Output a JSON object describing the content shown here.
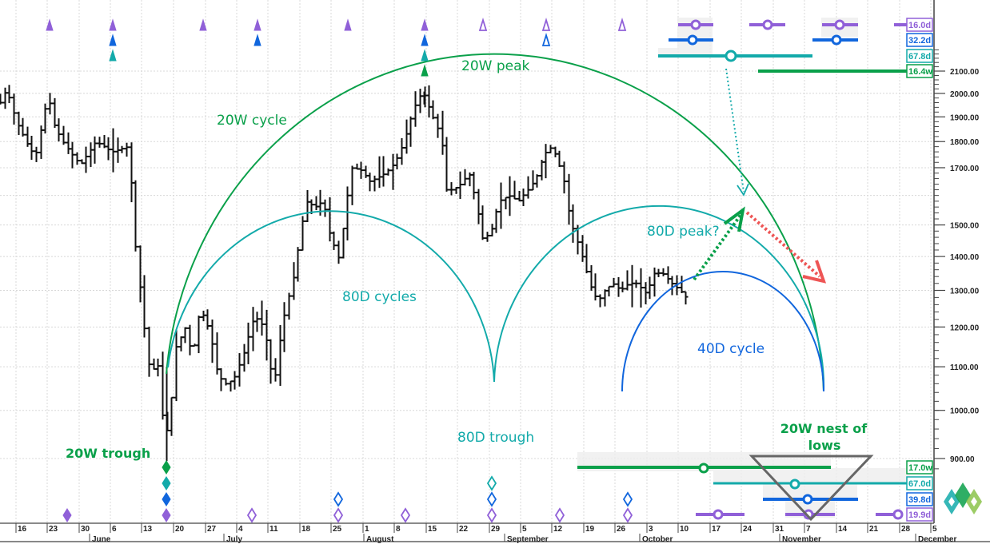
{
  "chart_data": {
    "type": "bar",
    "subtype": "ohlc-daily-price-with-cycle-analysis",
    "title": "",
    "xlabel": "",
    "ylabel": "",
    "y_scale": "log",
    "ylim": [
      870,
      2200
    ],
    "y_ticks": [
      "2100.00",
      "2000.00",
      "1900.00",
      "1800.00",
      "1700.00",
      "1500.00",
      "1400.00",
      "1300.00",
      "1200.00",
      "1100.00",
      "1000.00",
      "900.00"
    ],
    "x_week_ticks": [
      "16",
      "23",
      "30",
      "6",
      "13",
      "20",
      "27",
      "4",
      "11",
      "18",
      "25",
      "1",
      "8",
      "15",
      "22",
      "29",
      "5",
      "12",
      "19",
      "26",
      "3",
      "10",
      "17",
      "24",
      "31",
      "7",
      "14",
      "21",
      "28",
      "5"
    ],
    "x_months": [
      "June",
      "July",
      "August",
      "September",
      "October",
      "November",
      "December"
    ],
    "price_path_approx": [
      {
        "date": "May 16",
        "close": 2000
      },
      {
        "date": "May 23",
        "close": 1900
      },
      {
        "date": "May 30",
        "close": 1850
      },
      {
        "date": "Jun 6",
        "close": 1800
      },
      {
        "date": "Jun 13",
        "close": 1300
      },
      {
        "date": "Jun 18",
        "close": 900
      },
      {
        "date": "Jun 20",
        "close": 1150
      },
      {
        "date": "Jun 27",
        "close": 1200
      },
      {
        "date": "Jul 4",
        "close": 1070
      },
      {
        "date": "Jul 11",
        "close": 1150
      },
      {
        "date": "Jul 18",
        "close": 1580
      },
      {
        "date": "Jul 25",
        "close": 1600
      },
      {
        "date": "Aug 1",
        "close": 1700
      },
      {
        "date": "Aug 8",
        "close": 1650
      },
      {
        "date": "Aug 15",
        "close": 2000
      },
      {
        "date": "Aug 22",
        "close": 1640
      },
      {
        "date": "Aug 29",
        "close": 1470
      },
      {
        "date": "Sep 5",
        "close": 1600
      },
      {
        "date": "Sep 12",
        "close": 1780
      },
      {
        "date": "Sep 19",
        "close": 1300
      },
      {
        "date": "Sep 26",
        "close": 1310
      },
      {
        "date": "Oct 3",
        "close": 1340
      },
      {
        "date": "Oct 10",
        "close": 1290
      }
    ],
    "cycles": [
      {
        "name": "20W cycle",
        "color": "#0aa04a",
        "trough": "Jun 18",
        "next_trough": "Nov 7"
      },
      {
        "name": "80D cycles",
        "color": "#13aaaa",
        "troughs": [
          "Jun 18",
          "Aug 29",
          "Nov 7"
        ]
      },
      {
        "name": "40D cycle",
        "color": "#1166dd",
        "troughs": [
          "Sep 26",
          "Nov 7"
        ]
      }
    ],
    "annotations": [
      "20W peak",
      "20W cycle",
      "80D cycles",
      "80D trough",
      "80D peak?",
      "40D cycle",
      "20W trough",
      "20W nest of lows"
    ],
    "legend_position": "right axis badges"
  },
  "annotations": {
    "peak_20w": "20W peak",
    "cycle_20w": "20W cycle",
    "cycles_80d": "80D cycles",
    "trough_80d": "80D trough",
    "peak_80d": "80D peak?",
    "cycle_40d": "40D cycle",
    "trough_20w": "20W trough",
    "nest_line1": "20W nest of",
    "nest_line2": "lows"
  },
  "badges_top": [
    {
      "label": "16.0d",
      "color": "#9060d8"
    },
    {
      "label": "32.2d",
      "color": "#1166dd"
    },
    {
      "label": "67.8d",
      "color": "#13aaaa"
    },
    {
      "label": "16.4w",
      "color": "#0aa04a"
    }
  ],
  "badges_bottom": [
    {
      "label": "17.0w",
      "color": "#0aa04a"
    },
    {
      "label": "67.0d",
      "color": "#13aaaa"
    },
    {
      "label": "39.8d",
      "color": "#1166dd"
    },
    {
      "label": "19.9d",
      "color": "#9060d8"
    }
  ],
  "price_axis": {
    "labels": [
      "2100.00",
      "2000.00",
      "1900.00",
      "1800.00",
      "1700.00",
      "1500.00",
      "1400.00",
      "1300.00",
      "1200.00",
      "1100.00",
      "1000.00",
      "900.00"
    ]
  },
  "date_axis": {
    "weeks": [
      "16",
      "23",
      "30",
      "6",
      "13",
      "20",
      "27",
      "4",
      "11",
      "18",
      "25",
      "1",
      "8",
      "15",
      "22",
      "29",
      "5",
      "12",
      "19",
      "26",
      "3",
      "10",
      "17",
      "24",
      "31",
      "7",
      "14",
      "21",
      "28",
      "5"
    ],
    "months": [
      "June",
      "July",
      "August",
      "September",
      "October",
      "November",
      "December"
    ]
  },
  "colors": {
    "green": "#0aa04a",
    "teal": "#13aaaa",
    "blue": "#1166dd",
    "purple": "#9060d8",
    "red": "#ee5555",
    "grey": "#555555"
  }
}
